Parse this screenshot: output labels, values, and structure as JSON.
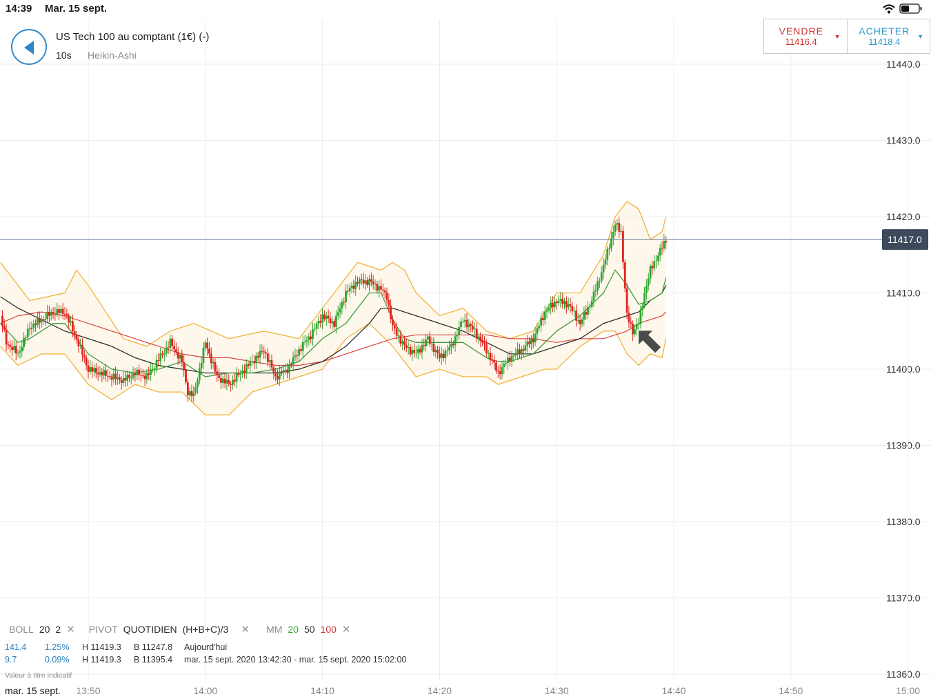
{
  "status_bar": {
    "time": "14:39",
    "date": "Mar. 15 sept."
  },
  "header": {
    "instrument": "US Tech 100 au comptant (1€) (-)",
    "timeframe": "10s",
    "chart_type": "Heikin-Ashi"
  },
  "trade": {
    "sell": {
      "label": "VENDRE",
      "price": "11416.4"
    },
    "buy": {
      "label": "ACHETER",
      "price": "11418.4"
    }
  },
  "colors": {
    "up_candle": "#2ea52e",
    "down_candle": "#e0231e",
    "bollinger": "#f0b23a",
    "ma20": "#3c9a3c",
    "ma50": "#2b2b2b",
    "ma100": "#d94040",
    "price_tag": "#3d4a5c",
    "back_button": "#2f86c8"
  },
  "chart_data": {
    "type": "candlestick",
    "x_tick_labels": [
      "13:50",
      "14:00",
      "14:10",
      "14:20",
      "14:30",
      "14:40",
      "14:50",
      "15:00"
    ],
    "y_tick_labels": [
      "11440.0",
      "11430.0",
      "11420.0",
      "11410.0",
      "11400.0",
      "11390.0",
      "11380.0",
      "11370.0",
      "11360.0"
    ],
    "ylim": [
      11360,
      11440
    ],
    "current_price": "11417.0",
    "series": [
      {
        "name": "Heikin-Ashi",
        "anchors": [
          [
            "13:42:30",
            11407
          ],
          [
            "13:43:00",
            11403.5
          ],
          [
            "13:44:00",
            11402
          ],
          [
            "13:45:00",
            11405.5
          ],
          [
            "13:47:00",
            11407.5
          ],
          [
            "13:48:00",
            11407.5
          ],
          [
            "13:49:00",
            11404
          ],
          [
            "13:50:00",
            11400
          ],
          [
            "13:52:00",
            11399
          ],
          [
            "13:53:00",
            11398.5
          ],
          [
            "13:54:00",
            11399.5
          ],
          [
            "13:55:00",
            11399
          ],
          [
            "13:57:00",
            11403.5
          ],
          [
            "13:58:00",
            11401
          ],
          [
            "13:58:30",
            11397
          ],
          [
            "13:59:00",
            11396.5
          ],
          [
            "14:00:00",
            11403.5
          ],
          [
            "14:01:00",
            11399
          ],
          [
            "14:02:00",
            11398
          ],
          [
            "14:03:00",
            11399.5
          ],
          [
            "14:04:00",
            11401
          ],
          [
            "14:05:00",
            11402.5
          ],
          [
            "14:06:00",
            11399
          ],
          [
            "14:07:00",
            11400
          ],
          [
            "14:08:00",
            11402.5
          ],
          [
            "14:09:00",
            11404.5
          ],
          [
            "14:10:00",
            11407
          ],
          [
            "14:11:00",
            11406
          ],
          [
            "14:12:00",
            11410
          ],
          [
            "14:13:00",
            11411.5
          ],
          [
            "14:14:00",
            11411.5
          ],
          [
            "14:15:00",
            11410.5
          ],
          [
            "14:15:30",
            11409.5
          ],
          [
            "14:16:00",
            11405.5
          ],
          [
            "14:17:00",
            11403
          ],
          [
            "14:18:00",
            11402
          ],
          [
            "14:19:00",
            11404
          ],
          [
            "14:20:00",
            11401.5
          ],
          [
            "14:21:00",
            11403
          ],
          [
            "14:22:00",
            11406.5
          ],
          [
            "14:23:00",
            11405
          ],
          [
            "14:24:00",
            11402.5
          ],
          [
            "14:25:00",
            11399.5
          ],
          [
            "14:26:00",
            11401.5
          ],
          [
            "14:27:00",
            11402.5
          ],
          [
            "14:28:00",
            11404
          ],
          [
            "14:29:00",
            11407.5
          ],
          [
            "14:30:00",
            11409
          ],
          [
            "14:31:00",
            11408.5
          ],
          [
            "14:32:00",
            11406
          ],
          [
            "14:33:00",
            11409
          ],
          [
            "14:34:00",
            11413.5
          ],
          [
            "14:35:00",
            11419
          ],
          [
            "14:35:30",
            11418
          ],
          [
            "14:36:00",
            11407
          ],
          [
            "14:36:30",
            11405
          ],
          [
            "14:37:00",
            11406
          ],
          [
            "14:37:30",
            11410
          ],
          [
            "14:38:00",
            11413
          ],
          [
            "14:39:00",
            11416
          ],
          [
            "14:39:20",
            11417
          ]
        ]
      },
      {
        "name": "BOLL 20 2",
        "upper": [
          [
            "13:42:30",
            11414
          ],
          [
            "13:45:00",
            11409
          ],
          [
            "13:48:00",
            11410
          ],
          [
            "13:49:00",
            11413
          ],
          [
            "13:50:00",
            11411
          ],
          [
            "13:53:00",
            11404
          ],
          [
            "13:55:00",
            11403
          ],
          [
            "13:57:00",
            11405
          ],
          [
            "13:59:00",
            11406
          ],
          [
            "14:02:00",
            11404
          ],
          [
            "14:05:00",
            11405
          ],
          [
            "14:08:00",
            11404
          ],
          [
            "14:10:00",
            11408
          ],
          [
            "14:12:00",
            11412
          ],
          [
            "14:13:00",
            11414
          ],
          [
            "14:15:00",
            11413
          ],
          [
            "14:16:00",
            11414
          ],
          [
            "14:17:00",
            11413
          ],
          [
            "14:18:00",
            11410
          ],
          [
            "14:20:00",
            11407
          ],
          [
            "14:22:00",
            11408
          ],
          [
            "14:24:00",
            11405
          ],
          [
            "14:26:00",
            11404
          ],
          [
            "14:28:00",
            11405
          ],
          [
            "14:30:00",
            11410
          ],
          [
            "14:32:00",
            11410
          ],
          [
            "14:34:00",
            11415
          ],
          [
            "14:35:00",
            11420
          ],
          [
            "14:36:00",
            11422
          ],
          [
            "14:37:00",
            11421
          ],
          [
            "14:38:00",
            11417
          ],
          [
            "14:39:00",
            11418
          ],
          [
            "14:39:20",
            11420
          ]
        ],
        "lower": [
          [
            "13:42:30",
            11403
          ],
          [
            "13:44:00",
            11400.5
          ],
          [
            "13:46:00",
            11402
          ],
          [
            "13:48:00",
            11402
          ],
          [
            "13:50:00",
            11398
          ],
          [
            "13:52:00",
            11396
          ],
          [
            "13:54:00",
            11398
          ],
          [
            "13:56:00",
            11397
          ],
          [
            "13:58:00",
            11397
          ],
          [
            "14:00:00",
            11394
          ],
          [
            "14:02:00",
            11394
          ],
          [
            "14:04:00",
            11397
          ],
          [
            "14:06:00",
            11398
          ],
          [
            "14:08:00",
            11399
          ],
          [
            "14:10:00",
            11400
          ],
          [
            "14:12:00",
            11404
          ],
          [
            "14:14:00",
            11406
          ],
          [
            "14:16:00",
            11403
          ],
          [
            "14:18:00",
            11399
          ],
          [
            "14:20:00",
            11400
          ],
          [
            "14:22:00",
            11399
          ],
          [
            "14:24:00",
            11399
          ],
          [
            "14:25:00",
            11398
          ],
          [
            "14:27:00",
            11399
          ],
          [
            "14:29:00",
            11400
          ],
          [
            "14:30:00",
            11400
          ],
          [
            "14:32:00",
            11403
          ],
          [
            "14:34:00",
            11405
          ],
          [
            "14:35:00",
            11405
          ],
          [
            "14:36:00",
            11402
          ],
          [
            "14:37:00",
            11400.5
          ],
          [
            "14:38:00",
            11402
          ],
          [
            "14:39:00",
            11401.5
          ],
          [
            "14:39:20",
            11404
          ]
        ],
        "middle": [
          [
            "13:42:30",
            11406
          ],
          [
            "13:44:00",
            11403.5
          ],
          [
            "13:45:00",
            11404
          ],
          [
            "13:47:00",
            11406
          ],
          [
            "13:48:00",
            11406
          ],
          [
            "13:50:00",
            11402
          ],
          [
            "13:52:00",
            11400
          ],
          [
            "13:54:00",
            11399.5
          ],
          [
            "13:56:00",
            11400
          ],
          [
            "13:58:00",
            11401
          ],
          [
            "14:00:00",
            11399
          ],
          [
            "14:02:00",
            11399.5
          ],
          [
            "14:04:00",
            11399.5
          ],
          [
            "14:06:00",
            11400
          ],
          [
            "14:08:00",
            11401
          ],
          [
            "14:10:00",
            11404
          ],
          [
            "14:12:00",
            11406
          ],
          [
            "14:14:00",
            11410
          ],
          [
            "14:15:00",
            11410
          ],
          [
            "14:16:00",
            11406.5
          ],
          [
            "14:17:00",
            11404
          ],
          [
            "14:18:00",
            11403.5
          ],
          [
            "14:20:00",
            11403.5
          ],
          [
            "14:22:00",
            11403.5
          ],
          [
            "14:24:00",
            11401.5
          ],
          [
            "14:25:00",
            11401
          ],
          [
            "14:26:00",
            11401
          ],
          [
            "14:28:00",
            11402
          ],
          [
            "14:30:00",
            11405
          ],
          [
            "14:32:00",
            11407
          ],
          [
            "14:34:00",
            11410
          ],
          [
            "14:35:00",
            11413
          ],
          [
            "14:36:00",
            11411
          ],
          [
            "14:37:00",
            11408.5
          ],
          [
            "14:38:00",
            11409
          ],
          [
            "14:39:00",
            11410
          ],
          [
            "14:39:20",
            11412
          ]
        ]
      },
      {
        "name": "MM 50",
        "values": [
          [
            "13:42:30",
            11409.5
          ],
          [
            "13:44:00",
            11408
          ],
          [
            "13:46:00",
            11406.5
          ],
          [
            "13:48:00",
            11405
          ],
          [
            "13:50:00",
            11404
          ],
          [
            "13:52:00",
            11403
          ],
          [
            "13:54:00",
            11401.5
          ],
          [
            "13:56:00",
            11400.5
          ],
          [
            "13:58:00",
            11400
          ],
          [
            "14:00:00",
            11399.5
          ],
          [
            "14:02:00",
            11399.5
          ],
          [
            "14:04:00",
            11399.5
          ],
          [
            "14:06:00",
            11399.5
          ],
          [
            "14:08:00",
            11400
          ],
          [
            "14:10:00",
            11401
          ],
          [
            "14:12:00",
            11403
          ],
          [
            "14:14:00",
            11406
          ],
          [
            "14:15:00",
            11408
          ],
          [
            "14:16:00",
            11408
          ],
          [
            "14:18:00",
            11407
          ],
          [
            "14:20:00",
            11406
          ],
          [
            "14:22:00",
            11405
          ],
          [
            "14:24:00",
            11403.5
          ],
          [
            "14:26:00",
            11402
          ],
          [
            "14:28:00",
            11402
          ],
          [
            "14:30:00",
            11403
          ],
          [
            "14:32:00",
            11404
          ],
          [
            "14:34:00",
            11406
          ],
          [
            "14:36:00",
            11407
          ],
          [
            "14:37:00",
            11407.5
          ],
          [
            "14:38:00",
            11409
          ],
          [
            "14:39:00",
            11410
          ],
          [
            "14:39:20",
            11411
          ]
        ]
      },
      {
        "name": "MM 100",
        "values": [
          [
            "13:42:30",
            11406
          ],
          [
            "13:44:00",
            11407
          ],
          [
            "13:46:00",
            11407.5
          ],
          [
            "13:48:00",
            11407
          ],
          [
            "13:50:00",
            11406
          ],
          [
            "13:52:00",
            11405
          ],
          [
            "13:54:00",
            11404
          ],
          [
            "13:56:00",
            11403
          ],
          [
            "13:58:00",
            11402
          ],
          [
            "14:00:00",
            11401.5
          ],
          [
            "14:02:00",
            11401.5
          ],
          [
            "14:04:00",
            11401
          ],
          [
            "14:06:00",
            11400.5
          ],
          [
            "14:08:00",
            11400.5
          ],
          [
            "14:10:00",
            11401
          ],
          [
            "14:12:00",
            11402
          ],
          [
            "14:14:00",
            11403
          ],
          [
            "14:16:00",
            11404
          ],
          [
            "14:18:00",
            11404.5
          ],
          [
            "14:20:00",
            11404.5
          ],
          [
            "14:22:00",
            11404.5
          ],
          [
            "14:24:00",
            11404.5
          ],
          [
            "14:26:00",
            11404
          ],
          [
            "14:28:00",
            11404
          ],
          [
            "14:30:00",
            11403.5
          ],
          [
            "14:32:00",
            11404
          ],
          [
            "14:34:00",
            11404
          ],
          [
            "14:35:00",
            11404.5
          ],
          [
            "14:36:00",
            11405
          ],
          [
            "14:37:00",
            11406
          ],
          [
            "14:38:00",
            11406.5
          ],
          [
            "14:39:00",
            11407
          ],
          [
            "14:39:20",
            11407.5
          ]
        ]
      }
    ]
  },
  "legend": {
    "boll_label": "BOLL",
    "boll_period": "20",
    "boll_dev": "2",
    "pivot_label": "PIVOT",
    "pivot_type": "QUOTIDIEN",
    "pivot_formula": "(H+B+C)/3",
    "mm_label": "MM",
    "mm_20": "20",
    "mm_50": "50",
    "mm_100": "100"
  },
  "stats": {
    "row1": {
      "change": "141.4",
      "percent": "1.25%",
      "high": "H 11419.3",
      "low": "B 11247.8",
      "period": "Aujourd'hui"
    },
    "row2": {
      "change": "9.7",
      "percent": "0.09%",
      "high": "H 11419.3",
      "low": "B 11395.4",
      "period": "mar. 15 sept. 2020 13:42:30 - mar. 15 sept. 2020 15:02:00"
    }
  },
  "disclaimer": "Valeur à titre indicatif",
  "bottom_date": "mar. 15 sept."
}
